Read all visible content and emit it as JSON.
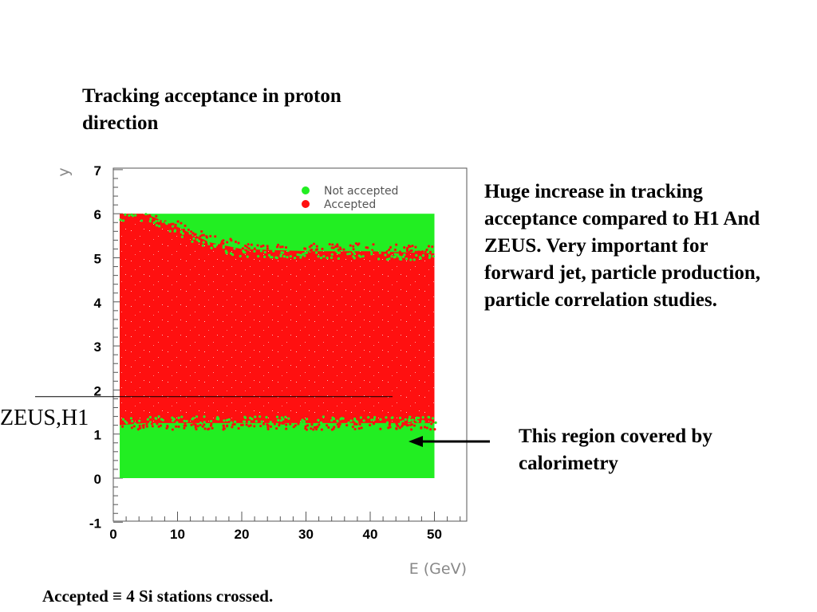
{
  "slide": {
    "title": "Tracking acceptance in proton direction",
    "comment": "Huge increase in tracking acceptance compared to H1 And ZEUS.  Very important for forward jet, particle production, particle correlation studies.",
    "callout": "This region covered by calorimetry",
    "footnote": "Accepted ≡ 4 Si stations crossed.",
    "zeus_label": "ZEUS,H1"
  },
  "chart_data": {
    "type": "scatter",
    "xlabel": "E (GeV)",
    "ylabel": "y",
    "xlim": [
      0,
      55
    ],
    "ylim": [
      -1,
      7
    ],
    "x_ticks": [
      0,
      10,
      20,
      30,
      40,
      50
    ],
    "y_ticks": [
      -1,
      0,
      1,
      2,
      3,
      4,
      5,
      6,
      7
    ],
    "legend_position": "top-right",
    "series": [
      {
        "name": "Not accepted",
        "color": "#22ee22",
        "region": {
          "x": [
            1,
            50
          ],
          "y": [
            0,
            6
          ]
        }
      },
      {
        "name": "Accepted",
        "color": "#ff1010",
        "boundary_x": [
          1,
          5,
          10,
          15,
          20,
          30,
          40,
          50
        ],
        "y_lower": [
          1.2,
          1.25,
          1.25,
          1.25,
          1.25,
          1.25,
          1.25,
          1.25
        ],
        "y_upper": [
          6.0,
          6.0,
          5.7,
          5.35,
          5.2,
          5.15,
          5.15,
          5.1
        ]
      }
    ],
    "zeus_h1_limit_y": 1.85,
    "colors": {
      "not_accepted": "#22ee22",
      "accepted": "#ff1010",
      "axis": "#555555"
    }
  }
}
